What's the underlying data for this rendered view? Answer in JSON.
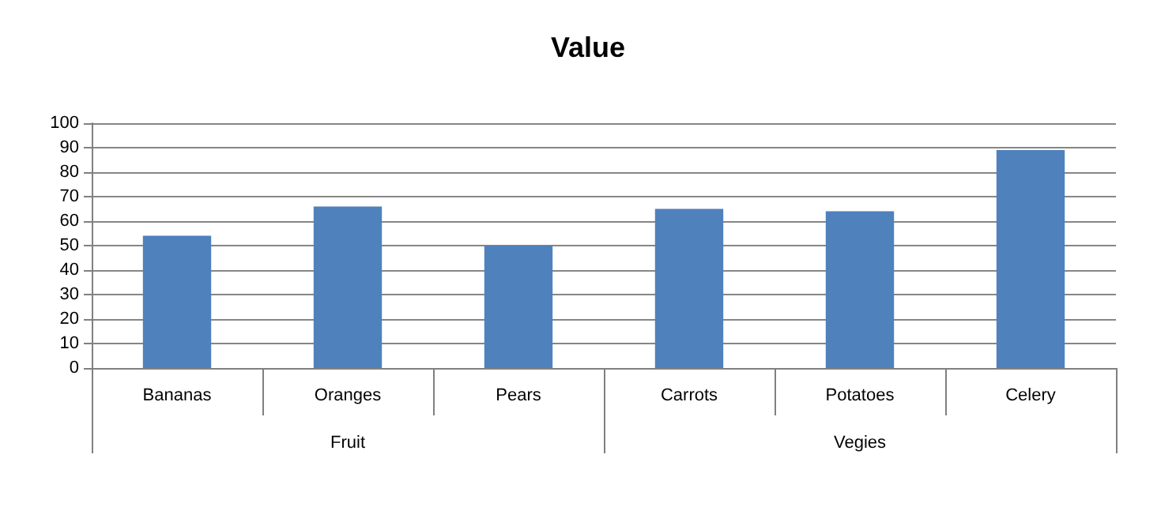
{
  "chart_data": {
    "type": "bar",
    "title": "Value",
    "categories": [
      "Bananas",
      "Oranges",
      "Pears",
      "Carrots",
      "Potatoes",
      "Celery"
    ],
    "values": [
      54,
      66,
      50,
      65,
      64,
      89
    ],
    "color": "#4f81bd",
    "ylim": [
      0,
      100
    ],
    "yticks": [
      0,
      10,
      20,
      30,
      40,
      50,
      60,
      70,
      80,
      90,
      100
    ],
    "grid": "y",
    "annotations": [
      "Fruit",
      "Vegies"
    ]
  }
}
